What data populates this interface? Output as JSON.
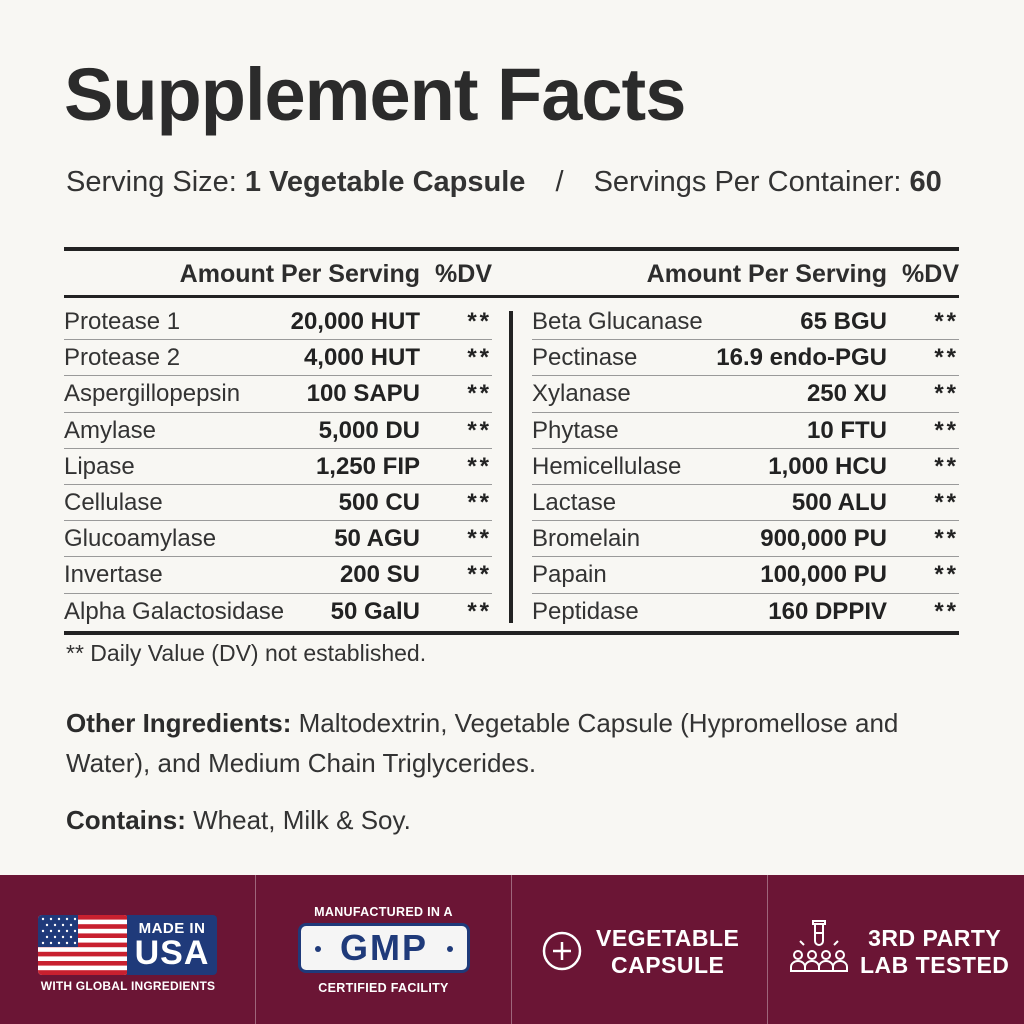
{
  "title": "Supplement Facts",
  "serving": {
    "size_label": "Serving Size:",
    "size_value": "1 Vegetable Capsule",
    "separator": "/",
    "per_container_label": "Servings Per Container:",
    "per_container_value": "60"
  },
  "table": {
    "amount_header": "Amount Per Serving",
    "dv_header": "%DV",
    "left_rows": [
      {
        "name": "Protease 1",
        "amount": "20,000 HUT",
        "dv": "**"
      },
      {
        "name": "Protease 2",
        "amount": "4,000 HUT",
        "dv": "**"
      },
      {
        "name": "Aspergillopepsin",
        "amount": "100 SAPU",
        "dv": "**"
      },
      {
        "name": "Amylase",
        "amount": "5,000 DU",
        "dv": "**"
      },
      {
        "name": "Lipase",
        "amount": "1,250 FIP",
        "dv": "**"
      },
      {
        "name": "Cellulase",
        "amount": "500 CU",
        "dv": "**"
      },
      {
        "name": "Glucoamylase",
        "amount": "50 AGU",
        "dv": "**"
      },
      {
        "name": "Invertase",
        "amount": "200 SU",
        "dv": "**"
      },
      {
        "name": "Alpha Galactosidase",
        "amount": "50 GalU",
        "dv": "**"
      }
    ],
    "right_rows": [
      {
        "name": "Beta Glucanase",
        "amount": "65 BGU",
        "dv": "**"
      },
      {
        "name": "Pectinase",
        "amount": "16.9 endo-PGU",
        "dv": "**"
      },
      {
        "name": "Xylanase",
        "amount": "250 XU",
        "dv": "**"
      },
      {
        "name": "Phytase",
        "amount": "10 FTU",
        "dv": "**"
      },
      {
        "name": "Hemicellulase",
        "amount": "1,000 HCU",
        "dv": "**"
      },
      {
        "name": "Lactase",
        "amount": "500 ALU",
        "dv": "**"
      },
      {
        "name": "Bromelain",
        "amount": "900,000 PU",
        "dv": "**"
      },
      {
        "name": "Papain",
        "amount": "100,000 PU",
        "dv": "**"
      },
      {
        "name": "Peptidase",
        "amount": "160 DPPIV",
        "dv": "**"
      }
    ]
  },
  "footnote": "** Daily Value (DV) not established.",
  "other_ingredients": {
    "label": "Other Ingredients:",
    "text": " Maltodextrin, Vegetable Capsule (Hypromellose and Water), and Medium Chain Triglycerides."
  },
  "contains": {
    "label": "Contains:",
    "text": " Wheat, Milk & Soy."
  },
  "badges": {
    "usa": {
      "made_in": "MADE IN",
      "country": "USA",
      "sub": "WITH GLOBAL INGREDIENTS",
      "icon": "us-flag-icon"
    },
    "gmp": {
      "top": "MANUFACTURED IN A",
      "mark": "GMP",
      "bottom": "CERTIFIED FACILITY"
    },
    "vegetable": {
      "line1": "VEGETABLE",
      "line2": "CAPSULE",
      "icon": "plus-circle-icon"
    },
    "lab": {
      "line1": "3RD PARTY",
      "line2": "LAB TESTED",
      "icon": "lab-test-tube-people-icon"
    }
  },
  "colors": {
    "background": "#f8f7f3",
    "band": "#6b1535",
    "badge_blue": "#1f3a7a",
    "text": "#2d2d2d"
  }
}
